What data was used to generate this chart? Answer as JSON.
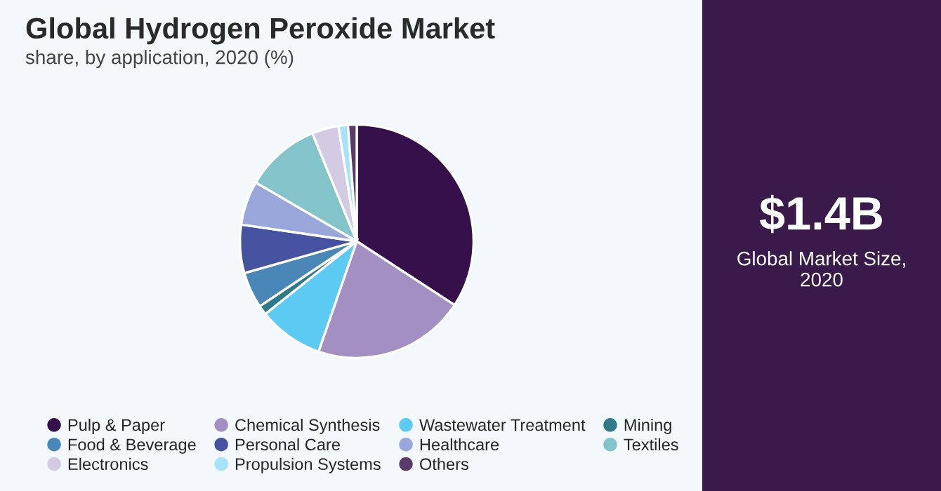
{
  "chart_data": {
    "type": "pie",
    "title": "Global Hydrogen Peroxide Market",
    "subtitle": "share, by application, 2020 (%)",
    "categories": [
      "Pulp & Paper",
      "Chemical Synthesis",
      "Wastewater Treatment",
      "Mining",
      "Food & Beverage",
      "Personal Care",
      "Healthcare",
      "Textiles",
      "Electronics",
      "Propulsion Systems",
      "Others"
    ],
    "values": [
      34.2,
      21.1,
      9.0,
      1.3,
      5.0,
      6.7,
      6.1,
      10.4,
      3.7,
      1.3,
      1.2
    ],
    "colors": [
      "#35104a",
      "#a48fc3",
      "#5ccbf3",
      "#2e7a88",
      "#4a87b9",
      "#4452a0",
      "#98a6da",
      "#83c4ca",
      "#d3cbe3",
      "#a6e2f8",
      "#5a3a6a"
    ],
    "legend": "bottom",
    "annotations": [
      "$1.4B",
      "Global Market Size,\n2020"
    ]
  }
}
